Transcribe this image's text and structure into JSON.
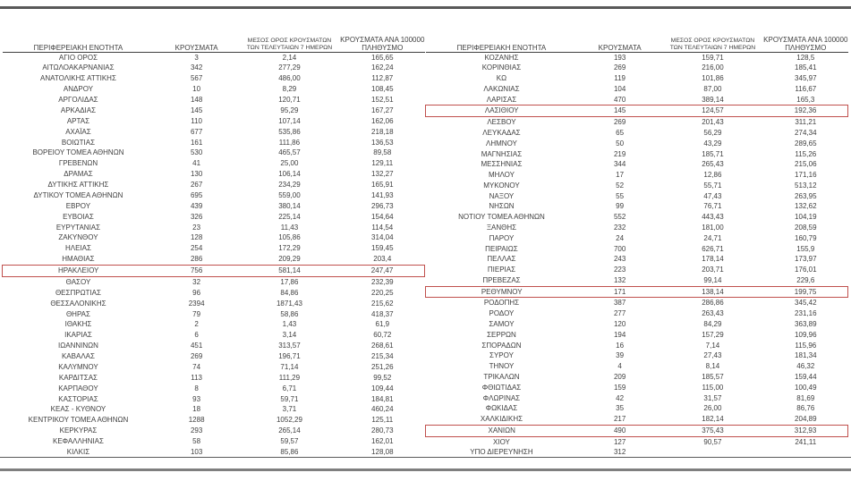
{
  "colors": {
    "text": "#3f3f3f",
    "highlight_border": "#c0504d",
    "rule_dark": "#595959",
    "rule_gray": "#7f7f7f"
  },
  "columns": {
    "region": "ΠΕΡΙΦΕΡΕΙΑΚΗ ΕΝΟΤΗΤΑ",
    "cases": "ΚΡΟΥΣΜΑΤΑ",
    "avg7_line1": "ΜΕΣΟΣ ΟΡΟΣ ΚΡΟΥΣΜΑΤΩΝ",
    "avg7_line2": "ΤΩΝ ΤΕΛΕΥΤΑΙΩΝ 7 ΗΜΕΡΩΝ",
    "per100k_line1": "ΚΡΟΥΣΜΑΤΑ ΑΝΑ 100000",
    "per100k_line2": "ΠΛΗΘΥΣΜΟ"
  },
  "left_table": {
    "rows": [
      {
        "name": "ΑΓΙΟ ΟΡΟΣ",
        "cases": "3",
        "avg7": "2,14",
        "per100k": "165,65",
        "highlighted": false
      },
      {
        "name": "ΑΙΤΩΛΟΑΚΑΡΝΑΝΙΑΣ",
        "cases": "342",
        "avg7": "277,29",
        "per100k": "162,24",
        "highlighted": false
      },
      {
        "name": "ΑΝΑΤΟΛΙΚΗΣ ΑΤΤΙΚΗΣ",
        "cases": "567",
        "avg7": "486,00",
        "per100k": "112,87",
        "highlighted": false
      },
      {
        "name": "ΑΝΔΡΟΥ",
        "cases": "10",
        "avg7": "8,29",
        "per100k": "108,45",
        "highlighted": false
      },
      {
        "name": "ΑΡΓΟΛΙΔΑΣ",
        "cases": "148",
        "avg7": "120,71",
        "per100k": "152,51",
        "highlighted": false
      },
      {
        "name": "ΑΡΚΑΔΙΑΣ",
        "cases": "145",
        "avg7": "95,29",
        "per100k": "167,27",
        "highlighted": false
      },
      {
        "name": "ΑΡΤΑΣ",
        "cases": "110",
        "avg7": "107,14",
        "per100k": "162,06",
        "highlighted": false
      },
      {
        "name": "ΑΧΑΪΑΣ",
        "cases": "677",
        "avg7": "535,86",
        "per100k": "218,18",
        "highlighted": false
      },
      {
        "name": "ΒΟΙΩΤΙΑΣ",
        "cases": "161",
        "avg7": "111,86",
        "per100k": "136,53",
        "highlighted": false
      },
      {
        "name": "ΒΟΡΕΙΟΥ ΤΟΜΕΑ ΑΘΗΝΩΝ",
        "cases": "530",
        "avg7": "465,57",
        "per100k": "89,58",
        "highlighted": false
      },
      {
        "name": "ΓΡΕΒΕΝΩΝ",
        "cases": "41",
        "avg7": "25,00",
        "per100k": "129,11",
        "highlighted": false
      },
      {
        "name": "ΔΡΑΜΑΣ",
        "cases": "130",
        "avg7": "106,14",
        "per100k": "132,27",
        "highlighted": false
      },
      {
        "name": "ΔΥΤΙΚΗΣ ΑΤΤΙΚΗΣ",
        "cases": "267",
        "avg7": "234,29",
        "per100k": "165,91",
        "highlighted": false
      },
      {
        "name": "ΔΥΤΙΚΟΥ ΤΟΜΕΑ ΑΘΗΝΩΝ",
        "cases": "695",
        "avg7": "559,00",
        "per100k": "141,93",
        "highlighted": false
      },
      {
        "name": "ΕΒΡΟΥ",
        "cases": "439",
        "avg7": "380,14",
        "per100k": "296,73",
        "highlighted": false
      },
      {
        "name": "ΕΥΒΟΙΑΣ",
        "cases": "326",
        "avg7": "225,14",
        "per100k": "154,64",
        "highlighted": false
      },
      {
        "name": "ΕΥΡΥΤΑΝΙΑΣ",
        "cases": "23",
        "avg7": "11,43",
        "per100k": "114,54",
        "highlighted": false
      },
      {
        "name": "ΖΑΚΥΝΘΟΥ",
        "cases": "128",
        "avg7": "105,86",
        "per100k": "314,04",
        "highlighted": false
      },
      {
        "name": "ΗΛΕΙΑΣ",
        "cases": "254",
        "avg7": "172,29",
        "per100k": "159,45",
        "highlighted": false
      },
      {
        "name": "ΗΜΑΘΙΑΣ",
        "cases": "286",
        "avg7": "209,29",
        "per100k": "203,4",
        "highlighted": false
      },
      {
        "name": "ΗΡΑΚΛΕΙΟΥ",
        "cases": "756",
        "avg7": "581,14",
        "per100k": "247,47",
        "highlighted": true
      },
      {
        "name": "ΘΑΣΟΥ",
        "cases": "32",
        "avg7": "17,86",
        "per100k": "232,39",
        "highlighted": false
      },
      {
        "name": "ΘΕΣΠΡΩΤΙΑΣ",
        "cases": "96",
        "avg7": "84,86",
        "per100k": "220,25",
        "highlighted": false
      },
      {
        "name": "ΘΕΣΣΑΛΟΝΙΚΗΣ",
        "cases": "2394",
        "avg7": "1871,43",
        "per100k": "215,62",
        "highlighted": false
      },
      {
        "name": "ΘΗΡΑΣ",
        "cases": "79",
        "avg7": "58,86",
        "per100k": "418,37",
        "highlighted": false
      },
      {
        "name": "ΙΘΑΚΗΣ",
        "cases": "2",
        "avg7": "1,43",
        "per100k": "61,9",
        "highlighted": false
      },
      {
        "name": "ΙΚΑΡΙΑΣ",
        "cases": "6",
        "avg7": "3,14",
        "per100k": "60,72",
        "highlighted": false
      },
      {
        "name": "ΙΩΑΝΝΙΝΩΝ",
        "cases": "451",
        "avg7": "313,57",
        "per100k": "268,61",
        "highlighted": false
      },
      {
        "name": "ΚΑΒΑΛΑΣ",
        "cases": "269",
        "avg7": "196,71",
        "per100k": "215,34",
        "highlighted": false
      },
      {
        "name": "ΚΑΛΥΜΝΟΥ",
        "cases": "74",
        "avg7": "71,14",
        "per100k": "251,26",
        "highlighted": false
      },
      {
        "name": "ΚΑΡΔΙΤΣΑΣ",
        "cases": "113",
        "avg7": "111,29",
        "per100k": "99,52",
        "highlighted": false
      },
      {
        "name": "ΚΑΡΠΑΘΟΥ",
        "cases": "8",
        "avg7": "6,71",
        "per100k": "109,44",
        "highlighted": false
      },
      {
        "name": "ΚΑΣΤΟΡΙΑΣ",
        "cases": "93",
        "avg7": "59,71",
        "per100k": "184,81",
        "highlighted": false
      },
      {
        "name": "ΚΕΑΣ - ΚΥΘΝΟΥ",
        "cases": "18",
        "avg7": "3,71",
        "per100k": "460,24",
        "highlighted": false
      },
      {
        "name": "ΚΕΝΤΡΙΚΟΥ ΤΟΜΕΑ ΑΘΗΝΩΝ",
        "cases": "1288",
        "avg7": "1052,29",
        "per100k": "125,11",
        "highlighted": false
      },
      {
        "name": "ΚΕΡΚΥΡΑΣ",
        "cases": "293",
        "avg7": "265,14",
        "per100k": "280,73",
        "highlighted": false
      },
      {
        "name": "ΚΕΦΑΛΛΗΝΙΑΣ",
        "cases": "58",
        "avg7": "59,57",
        "per100k": "162,01",
        "highlighted": false
      },
      {
        "name": "ΚΙΛΚΙΣ",
        "cases": "103",
        "avg7": "85,86",
        "per100k": "128,08",
        "highlighted": false
      }
    ]
  },
  "right_table": {
    "rows": [
      {
        "name": "ΚΟΖΑΝΗΣ",
        "cases": "193",
        "avg7": "159,71",
        "per100k": "128,5",
        "highlighted": false
      },
      {
        "name": "ΚΟΡΙΝΘΙΑΣ",
        "cases": "269",
        "avg7": "216,00",
        "per100k": "185,41",
        "highlighted": false
      },
      {
        "name": "ΚΩ",
        "cases": "119",
        "avg7": "101,86",
        "per100k": "345,97",
        "highlighted": false
      },
      {
        "name": "ΛΑΚΩΝΙΑΣ",
        "cases": "104",
        "avg7": "87,00",
        "per100k": "116,67",
        "highlighted": false
      },
      {
        "name": "ΛΑΡΙΣΑΣ",
        "cases": "470",
        "avg7": "389,14",
        "per100k": "165,3",
        "highlighted": false
      },
      {
        "name": "ΛΑΣΙΘΙΟΥ",
        "cases": "145",
        "avg7": "124,57",
        "per100k": "192,36",
        "highlighted": true
      },
      {
        "name": "ΛΕΣΒΟΥ",
        "cases": "269",
        "avg7": "201,43",
        "per100k": "311,21",
        "highlighted": false
      },
      {
        "name": "ΛΕΥΚΑΔΑΣ",
        "cases": "65",
        "avg7": "56,29",
        "per100k": "274,34",
        "highlighted": false
      },
      {
        "name": "ΛΗΜΝΟΥ",
        "cases": "50",
        "avg7": "43,29",
        "per100k": "289,65",
        "highlighted": false
      },
      {
        "name": "ΜΑΓΝΗΣΙΑΣ",
        "cases": "219",
        "avg7": "185,71",
        "per100k": "115,26",
        "highlighted": false
      },
      {
        "name": "ΜΕΣΣΗΝΙΑΣ",
        "cases": "344",
        "avg7": "265,43",
        "per100k": "215,06",
        "highlighted": false
      },
      {
        "name": "ΜΗΛΟΥ",
        "cases": "17",
        "avg7": "12,86",
        "per100k": "171,16",
        "highlighted": false
      },
      {
        "name": "ΜΥΚΟΝΟΥ",
        "cases": "52",
        "avg7": "55,71",
        "per100k": "513,12",
        "highlighted": false
      },
      {
        "name": "ΝΑΞΟΥ",
        "cases": "55",
        "avg7": "47,43",
        "per100k": "263,95",
        "highlighted": false
      },
      {
        "name": "ΝΗΣΩΝ",
        "cases": "99",
        "avg7": "76,71",
        "per100k": "132,62",
        "highlighted": false
      },
      {
        "name": "ΝΟΤΙΟΥ ΤΟΜΕΑ ΑΘΗΝΩΝ",
        "cases": "552",
        "avg7": "443,43",
        "per100k": "104,19",
        "highlighted": false
      },
      {
        "name": "ΞΑΝΘΗΣ",
        "cases": "232",
        "avg7": "181,00",
        "per100k": "208,59",
        "highlighted": false
      },
      {
        "name": "ΠΑΡΟΥ",
        "cases": "24",
        "avg7": "24,71",
        "per100k": "160,79",
        "highlighted": false
      },
      {
        "name": "ΠΕΙΡΑΙΩΣ",
        "cases": "700",
        "avg7": "626,71",
        "per100k": "155,9",
        "highlighted": false
      },
      {
        "name": "ΠΕΛΛΑΣ",
        "cases": "243",
        "avg7": "178,14",
        "per100k": "173,97",
        "highlighted": false
      },
      {
        "name": "ΠΙΕΡΙΑΣ",
        "cases": "223",
        "avg7": "203,71",
        "per100k": "176,01",
        "highlighted": false
      },
      {
        "name": "ΠΡΕΒΕΖΑΣ",
        "cases": "132",
        "avg7": "99,14",
        "per100k": "229,6",
        "highlighted": false
      },
      {
        "name": "ΡΕΘΥΜΝΟΥ",
        "cases": "171",
        "avg7": "138,14",
        "per100k": "199,75",
        "highlighted": true
      },
      {
        "name": "ΡΟΔΟΠΗΣ",
        "cases": "387",
        "avg7": "286,86",
        "per100k": "345,42",
        "highlighted": false
      },
      {
        "name": "ΡΟΔΟΥ",
        "cases": "277",
        "avg7": "263,43",
        "per100k": "231,16",
        "highlighted": false
      },
      {
        "name": "ΣΑΜΟΥ",
        "cases": "120",
        "avg7": "84,29",
        "per100k": "363,89",
        "highlighted": false
      },
      {
        "name": "ΣΕΡΡΩΝ",
        "cases": "194",
        "avg7": "157,29",
        "per100k": "109,96",
        "highlighted": false
      },
      {
        "name": "ΣΠΟΡΑΔΩΝ",
        "cases": "16",
        "avg7": "7,14",
        "per100k": "115,96",
        "highlighted": false
      },
      {
        "name": "ΣΥΡΟΥ",
        "cases": "39",
        "avg7": "27,43",
        "per100k": "181,34",
        "highlighted": false
      },
      {
        "name": "ΤΗΝΟΥ",
        "cases": "4",
        "avg7": "8,14",
        "per100k": "46,32",
        "highlighted": false
      },
      {
        "name": "ΤΡΙΚΑΛΩΝ",
        "cases": "209",
        "avg7": "185,57",
        "per100k": "159,44",
        "highlighted": false
      },
      {
        "name": "ΦΘΙΩΤΙΔΑΣ",
        "cases": "159",
        "avg7": "115,00",
        "per100k": "100,49",
        "highlighted": false
      },
      {
        "name": "ΦΛΩΡΙΝΑΣ",
        "cases": "42",
        "avg7": "31,57",
        "per100k": "81,69",
        "highlighted": false
      },
      {
        "name": "ΦΩΚΙΔΑΣ",
        "cases": "35",
        "avg7": "26,00",
        "per100k": "86,76",
        "highlighted": false
      },
      {
        "name": "ΧΑΛΚΙΔΙΚΗΣ",
        "cases": "217",
        "avg7": "182,14",
        "per100k": "204,89",
        "highlighted": false
      },
      {
        "name": "ΧΑΝΙΩΝ",
        "cases": "490",
        "avg7": "375,43",
        "per100k": "312,93",
        "highlighted": true
      },
      {
        "name": "ΧΙΟΥ",
        "cases": "127",
        "avg7": "90,57",
        "per100k": "241,11",
        "highlighted": false
      },
      {
        "name": "ΥΠΟ ΔΙΕΡΕΥΝΗΣΗ",
        "cases": "312",
        "avg7": "",
        "per100k": "",
        "highlighted": false
      }
    ]
  }
}
